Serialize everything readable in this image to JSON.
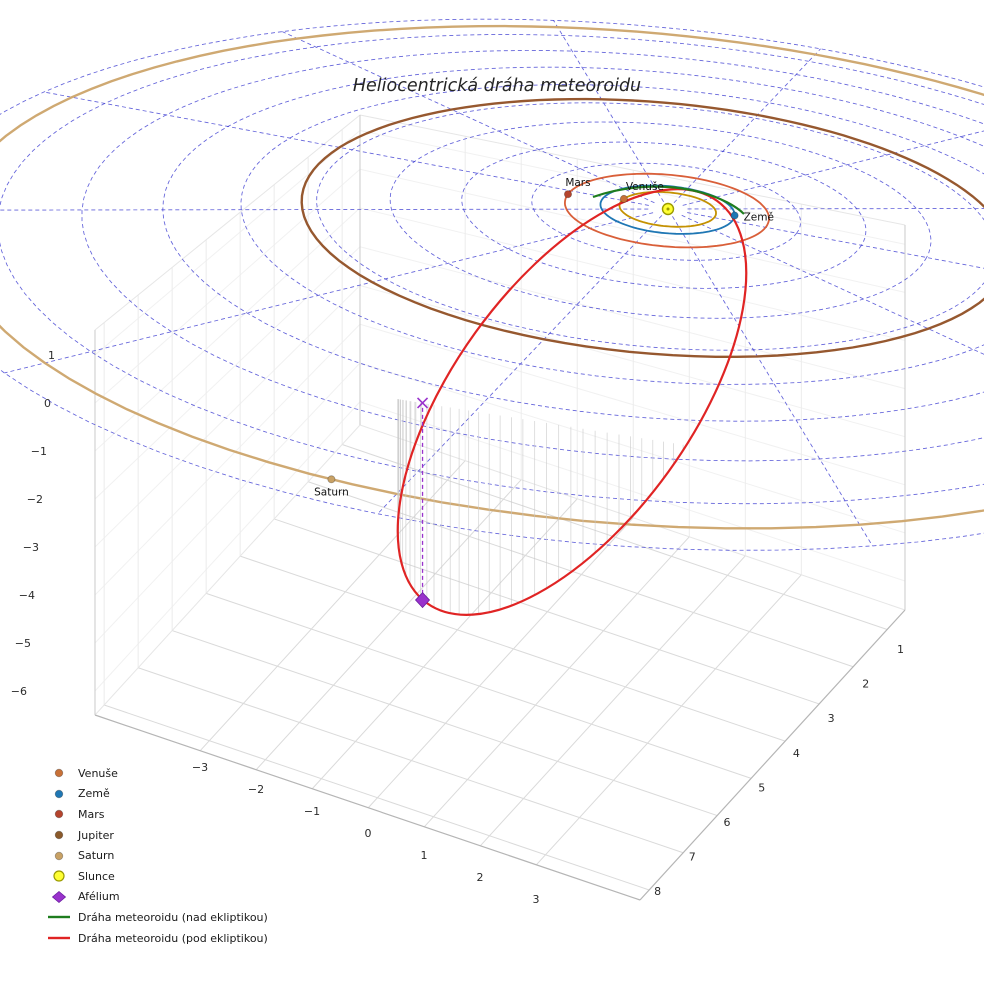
{
  "title": "Heliocentrická dráha meteoroidu",
  "chart_data": {
    "type": "line",
    "projection": "3d",
    "title": "Heliocentrická dráha meteoroidu",
    "grid": true,
    "legend_position": "lower-left",
    "axes": {
      "x_ticks": [
        -3,
        -2,
        -1,
        0,
        1,
        2,
        3
      ],
      "y_ticks": [
        1,
        2,
        3,
        4,
        5,
        6,
        7,
        8
      ],
      "z_ticks": [
        1,
        0,
        -1,
        -2,
        -3,
        -4,
        -5,
        -6
      ]
    },
    "ecliptic_grid": {
      "color": "#3b3bd1",
      "circle_radii_au": [
        1,
        2,
        3,
        4,
        5,
        6,
        7,
        8,
        9,
        10
      ],
      "radial_step_deg": 30
    },
    "sun": {
      "label": "Slunce",
      "color": "#ffff33",
      "edge_color": "#9a9a00"
    },
    "planets": [
      {
        "name": "Venuše",
        "orbit_radius_au": 0.72,
        "orbit_color": "#c49102",
        "marker_color": "#c87137",
        "marker_angle_deg": 186,
        "label_visible": true
      },
      {
        "name": "Země",
        "orbit_radius_au": 1.0,
        "orbit_color": "#1f77b4",
        "marker_color": "#1f77b4",
        "marker_angle_deg": -14,
        "label_visible": true
      },
      {
        "name": "Mars",
        "orbit_radius_au": 1.52,
        "orbit_color": "#d95f39",
        "marker_color": "#b5442d",
        "marker_angle_deg": 174,
        "label_visible": true
      },
      {
        "name": "Jupiter",
        "orbit_radius_au": 5.2,
        "orbit_color": "#96582f",
        "marker_color": "#8b5a2b",
        "marker_angle_deg": null,
        "label_visible": false
      },
      {
        "name": "Saturn",
        "orbit_radius_au": 9.54,
        "orbit_color": "#cfa972",
        "marker_color": "#c8a165",
        "marker_angle_deg": 94.45,
        "label_visible": true
      }
    ],
    "meteoroid": {
      "above_color": "#1e7d1e",
      "below_color": "#e02424",
      "perihelion_au": 1.0,
      "aphelion_au": 8.1,
      "aphelion": {
        "label": "Afélium",
        "color": "#9932cc",
        "x": -0.62,
        "y": 7.46,
        "z": -3.16
      }
    },
    "legend": [
      {
        "label": "Venuše",
        "marker": "dot",
        "color": "#c87137"
      },
      {
        "label": "Země",
        "marker": "dot",
        "color": "#1f77b4"
      },
      {
        "label": "Mars",
        "marker": "dot",
        "color": "#b5442d"
      },
      {
        "label": "Jupiter",
        "marker": "dot",
        "color": "#8b5a2b"
      },
      {
        "label": "Saturn",
        "marker": "dot",
        "color": "#c8a165"
      },
      {
        "label": "Slunce",
        "marker": "circle",
        "color": "#ffff33"
      },
      {
        "label": "Afélium",
        "marker": "diamond",
        "color": "#9932cc"
      },
      {
        "label": "Dráha meteoroidu (nad ekliptikou)",
        "marker": "line",
        "color": "#1e7d1e"
      },
      {
        "label": "Dráha meteoroidu (pod ekliptikou)",
        "marker": "line",
        "color": "#e02424"
      }
    ]
  }
}
